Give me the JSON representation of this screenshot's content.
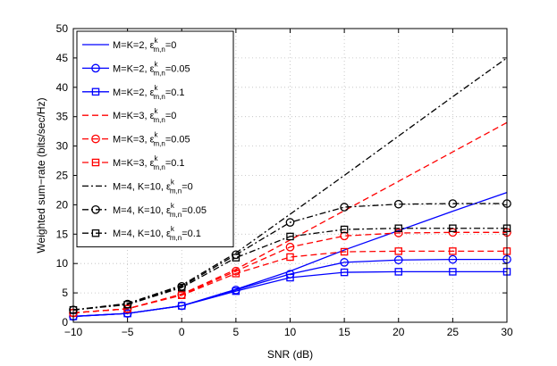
{
  "chart_data": {
    "type": "line",
    "title": "",
    "xlabel": "SNR (dB)",
    "ylabel": "Weighted sum−rate (bits/sec/Hz)",
    "xlim": [
      -10,
      30
    ],
    "ylim": [
      0,
      50
    ],
    "xticks": [
      -10,
      -5,
      0,
      5,
      10,
      15,
      20,
      25,
      30
    ],
    "yticks": [
      0,
      5,
      10,
      15,
      20,
      25,
      30,
      35,
      40,
      45,
      50
    ],
    "xtick_labels": [
      "−10",
      "−5",
      "0",
      "5",
      "10",
      "15",
      "20",
      "25",
      "30"
    ],
    "ytick_labels": [
      "0",
      "5",
      "10",
      "15",
      "20",
      "25",
      "30",
      "35",
      "40",
      "45",
      "50"
    ],
    "grid": true,
    "legend_position": "top-left",
    "x": [
      -10,
      -5,
      0,
      5,
      10,
      15,
      20,
      25,
      30
    ],
    "series": [
      {
        "name": "M=K=2, ε=0",
        "legend_prefix": "M=K=2, ",
        "legend_suffix": "=0",
        "color": "#0000ff",
        "dash": "solid",
        "marker": "none",
        "values": [
          1.0,
          1.5,
          2.8,
          5.6,
          8.7,
          12.3,
          15.6,
          18.9,
          22.1
        ]
      },
      {
        "name": "M=K=2, ε=0.05",
        "legend_prefix": "M=K=2, ",
        "legend_suffix": "=0.05",
        "color": "#0000ff",
        "dash": "solid",
        "marker": "circle",
        "values": [
          1.0,
          1.5,
          2.8,
          5.5,
          8.2,
          10.2,
          10.6,
          10.7,
          10.7
        ]
      },
      {
        "name": "M=K=2, ε=0.1",
        "legend_prefix": "M=K=2, ",
        "legend_suffix": "=0.1",
        "color": "#0000ff",
        "dash": "solid",
        "marker": "square",
        "values": [
          1.0,
          1.5,
          2.8,
          5.3,
          7.6,
          8.5,
          8.6,
          8.6,
          8.6
        ]
      },
      {
        "name": "M=K=3, ε=0",
        "legend_prefix": "M=K=3, ",
        "legend_suffix": "=0",
        "color": "#ff0000",
        "dash": "dashed",
        "marker": "none",
        "values": [
          1.6,
          2.3,
          4.8,
          9.0,
          14.0,
          19.0,
          24.0,
          29.0,
          34.0
        ]
      },
      {
        "name": "M=K=3, ε=0.05",
        "legend_prefix": "M=K=3, ",
        "legend_suffix": "=0.05",
        "color": "#ff0000",
        "dash": "dashed",
        "marker": "circle",
        "values": [
          1.6,
          2.3,
          4.7,
          8.7,
          12.8,
          14.7,
          15.2,
          15.3,
          15.3
        ]
      },
      {
        "name": "M=K=3, ε=0.1",
        "legend_prefix": "M=K=3, ",
        "legend_suffix": "=0.1",
        "color": "#ff0000",
        "dash": "dashed",
        "marker": "square",
        "values": [
          1.6,
          2.3,
          4.6,
          8.3,
          11.1,
          12.0,
          12.1,
          12.1,
          12.1
        ]
      },
      {
        "name": "M=4, K=10, ε=0",
        "legend_prefix": "M=4, K=10, ",
        "legend_suffix": "=0",
        "color": "#000000",
        "dash": "dashdot",
        "marker": "none",
        "values": [
          2.1,
          3.2,
          6.3,
          11.8,
          18.4,
          25.0,
          31.7,
          38.4,
          45.0
        ]
      },
      {
        "name": "M=4, K=10, ε=0.05",
        "legend_prefix": "M=4, K=10, ",
        "legend_suffix": "=0.05",
        "color": "#000000",
        "dash": "dashdot",
        "marker": "circle",
        "values": [
          2.1,
          3.1,
          6.1,
          11.5,
          17.0,
          19.6,
          20.1,
          20.2,
          20.2
        ]
      },
      {
        "name": "M=4, K=10, ε=0.1",
        "legend_prefix": "M=4, K=10, ",
        "legend_suffix": "=0.1",
        "color": "#000000",
        "dash": "dashdot",
        "marker": "square",
        "values": [
          2.1,
          3.0,
          5.9,
          11.0,
          14.6,
          15.8,
          16.0,
          16.0,
          16.0
        ]
      }
    ]
  }
}
